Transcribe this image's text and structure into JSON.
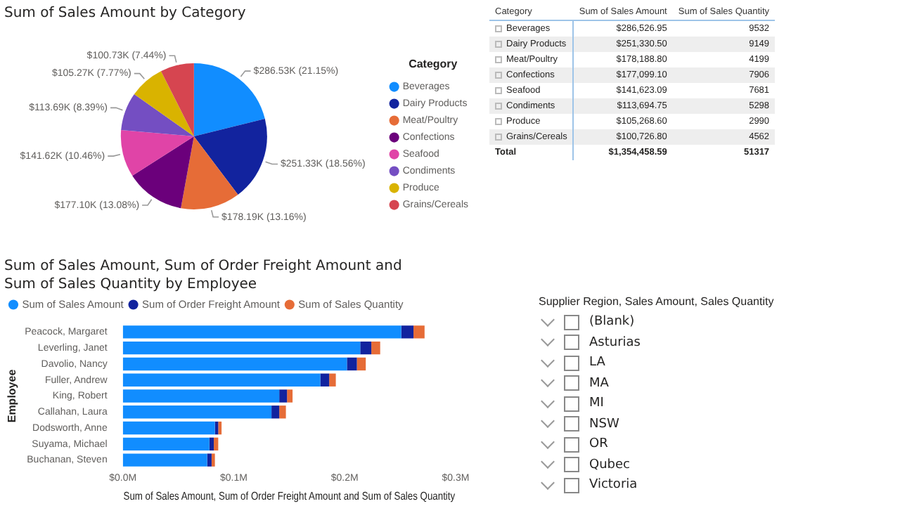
{
  "chart_data": [
    {
      "type": "pie",
      "title": "Sum of Sales Amount by Category",
      "legend_title": "Category",
      "legend": "right",
      "categories": [
        "Beverages",
        "Dairy Products",
        "Meat/Poultry",
        "Confections",
        "Seafood",
        "Condiments",
        "Produce",
        "Grains/Cereals"
      ],
      "values": [
        286530,
        251330,
        178190,
        177100,
        141620,
        113690,
        105270,
        100730
      ],
      "colors": [
        "#118dff",
        "#12239e",
        "#e66c37",
        "#6b007b",
        "#e044a7",
        "#744ec2",
        "#d9b300",
        "#d64550"
      ],
      "value_labels": [
        "$286.53K (21.15%)",
        "$251.33K (18.56%)",
        "$178.19K (13.16%)",
        "$177.10K (13.08%)",
        "$141.62K (10.46%)",
        "$113.69K (8.39%)",
        "$105.27K (7.77%)",
        "$100.73K (7.44%)"
      ]
    },
    {
      "type": "other",
      "xlabel": "Category",
      "categories": [
        "Beverages",
        "Dairy Products",
        "Meat/Poultry",
        "Confections",
        "Seafood",
        "Condiments",
        "Produce",
        "Grains/Cereals"
      ],
      "series": [
        {
          "name": "Sum of Sales Amount",
          "values": [
            286526.95,
            251330.5,
            178188.8,
            177099.1,
            141623.09,
            113694.75,
            105268.6,
            100726.8
          ],
          "value_labels": [
            "$286,526.95",
            "$251,330.50",
            "$178,188.80",
            "$177,099.10",
            "$141,623.09",
            "$113,694.75",
            "$105,268.60",
            "$100,726.80"
          ]
        },
        {
          "name": "Sum of Sales Quantity",
          "values": [
            9532,
            9149,
            4199,
            7906,
            7681,
            5298,
            2990,
            4562
          ],
          "value_labels": [
            "9532",
            "9149",
            "4199",
            "7906",
            "7681",
            "5298",
            "2990",
            "4562"
          ]
        }
      ],
      "annotations": [
        "Total",
        "$1,354,458.59",
        "51317"
      ]
    },
    {
      "type": "bar",
      "orientation": "horizontal",
      "stacked": true,
      "title": "Sum of Sales Amount, Sum of Order Freight Amount and Sum of Sales Quantity by Employee",
      "xlabel": "Sum of Sales Amount, Sum of Order Freight Amount and Sum of Sales Quantity",
      "ylabel": "Employee",
      "legend": "top left",
      "grid": false,
      "categories": [
        "Peacock, Margaret",
        "Leverling, Janet",
        "Davolio, Nancy",
        "Fuller, Andrew",
        "King, Robert",
        "Callahan, Laura",
        "Dodsworth, Anne",
        "Suyama, Michael",
        "Buchanan, Steven"
      ],
      "xlim": [
        0,
        0.3
      ],
      "xticks": [
        {
          "value": 0,
          "label": "$0.0M"
        },
        {
          "value": 0.1,
          "label": "$0.1M"
        },
        {
          "value": 0.2,
          "label": "$0.2M"
        },
        {
          "value": 0.3,
          "label": "$0.3M"
        }
      ],
      "series": [
        {
          "name": "Sum of Sales Amount",
          "color": "#118dff",
          "values": [
            0.251,
            0.214,
            0.202,
            0.178,
            0.141,
            0.134,
            0.083,
            0.078,
            0.076
          ]
        },
        {
          "name": "Sum of Order Freight Amount",
          "color": "#12239e",
          "values": [
            0.011,
            0.01,
            0.009,
            0.008,
            0.007,
            0.007,
            0.003,
            0.004,
            0.004
          ]
        },
        {
          "name": "Sum of Sales Quantity",
          "color": "#e66c37",
          "values": [
            0.01,
            0.008,
            0.008,
            0.006,
            0.005,
            0.006,
            0.003,
            0.004,
            0.003
          ]
        }
      ]
    },
    {
      "type": "other",
      "title": "Supplier Region, Sales Amount, Sales Quantity",
      "categories": [
        "(Blank)",
        "Asturias",
        "LA",
        "MA",
        "MI",
        "NSW",
        "OR",
        "Qubec",
        "Victoria"
      ]
    }
  ]
}
